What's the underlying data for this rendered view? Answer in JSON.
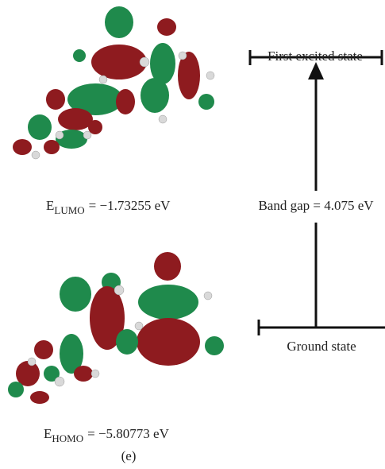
{
  "diagram": {
    "lumo_label": {
      "symbol": "E",
      "subscript": "LUMO",
      "value": "= −1.73255 eV"
    },
    "homo_label": {
      "symbol": "E",
      "subscript": "HOMO",
      "value": "= −5.80773 eV"
    },
    "excited_state": "First excited state",
    "ground_state": "Ground state",
    "band_gap": "Band gap = 4.075 eV",
    "panel_label": "(e)"
  }
}
